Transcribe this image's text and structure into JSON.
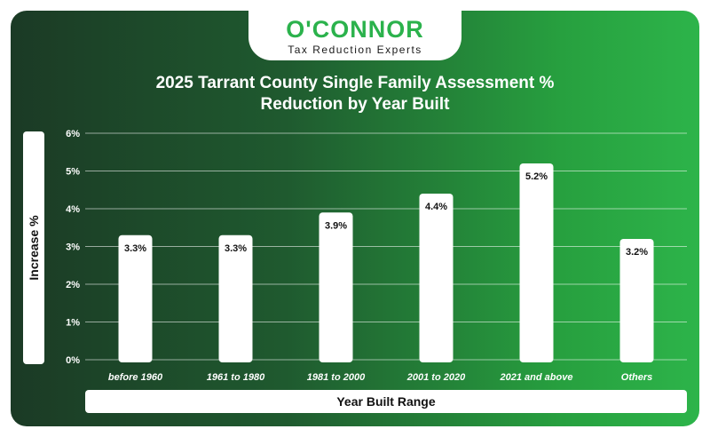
{
  "brand": {
    "name": "O'CONNOR",
    "tagline": "Tax Reduction Experts"
  },
  "colors": {
    "brand_green": "#2bb24c",
    "bar": "#ffffff",
    "background_dark": "#1b3a25",
    "background_light": "#2db44a"
  },
  "chart_data": {
    "type": "bar",
    "title_lines": [
      "2025 Tarrant County Single Family Assessment %",
      "Reduction by Year Built"
    ],
    "xlabel": "Year Built Range",
    "ylabel": "Increase %",
    "categories": [
      "before 1960",
      "1961 to 1980",
      "1981 to 2000",
      "2001 to 2020",
      "2021 and above",
      "Others"
    ],
    "values": [
      3.3,
      3.3,
      3.9,
      4.4,
      5.2,
      3.2
    ],
    "value_labels": [
      "3.3%",
      "3.3%",
      "3.9%",
      "4.4%",
      "5.2%",
      "3.2%"
    ],
    "ylim": [
      0,
      6
    ],
    "yticks": [
      0,
      1,
      2,
      3,
      4,
      5,
      6
    ],
    "ytick_labels": [
      "0%",
      "1%",
      "2%",
      "3%",
      "4%",
      "5%",
      "6%"
    ],
    "grid": true,
    "legend": "none"
  }
}
